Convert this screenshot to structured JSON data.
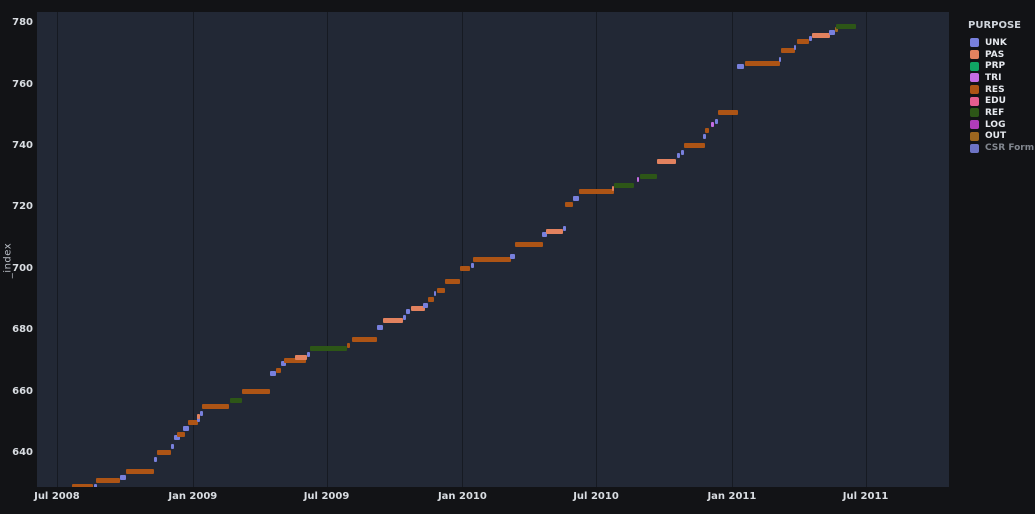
{
  "page": {
    "background": "#121316",
    "plot_background": "#222835"
  },
  "y_axis_title": "_index",
  "legend": {
    "title": "PURPOSE",
    "items": [
      {
        "label": "UNK",
        "color": "#7880dd",
        "dimmed": false
      },
      {
        "label": "PAS",
        "color": "#e2825f",
        "dimmed": false
      },
      {
        "label": "PRP",
        "color": "#10a564",
        "dimmed": false
      },
      {
        "label": "TRI",
        "color": "#c46ce4",
        "dimmed": false
      },
      {
        "label": "RES",
        "color": "#ad5415",
        "dimmed": false
      },
      {
        "label": "EDU",
        "color": "#e55d8f",
        "dimmed": false
      },
      {
        "label": "REF",
        "color": "#2d5617",
        "dimmed": false
      },
      {
        "label": "LOG",
        "color": "#b13cba",
        "dimmed": false
      },
      {
        "label": "OUT",
        "color": "#9c661f",
        "dimmed": false
      },
      {
        "label": "CSR Form",
        "color": "#6d73c4",
        "dimmed": true
      }
    ]
  },
  "chart_data": {
    "type": "gantt",
    "title": "",
    "xlabel": "",
    "ylabel": "_index",
    "legend_title": "PURPOSE",
    "legend_position": "top-right",
    "grid": "vertical-only",
    "x_domain": [
      "2008-06-04",
      "2011-10-22"
    ],
    "y_domain": [
      628.9,
      783.6
    ],
    "x_ticks": [
      {
        "date": "2008-07-01",
        "label": "Jul 2008"
      },
      {
        "date": "2009-01-01",
        "label": "Jan 2009"
      },
      {
        "date": "2009-07-01",
        "label": "Jul 2009"
      },
      {
        "date": "2010-01-01",
        "label": "Jan 2010"
      },
      {
        "date": "2010-07-01",
        "label": "Jul 2010"
      },
      {
        "date": "2011-01-01",
        "label": "Jan 2011"
      },
      {
        "date": "2011-07-01",
        "label": "Jul 2011"
      }
    ],
    "y_ticks": [
      640,
      660,
      680,
      700,
      720,
      740,
      760,
      780
    ],
    "colors": {
      "UNK": "#7880dd",
      "PAS": "#e2825f",
      "PRP": "#10a564",
      "TRI": "#c46ce4",
      "RES": "#ad5415",
      "EDU": "#e55d8f",
      "REF": "#2d5617",
      "LOG": "#b13cba",
      "OUT": "#9c661f",
      "CSR Form": "#6d73c4"
    },
    "segments": [
      {
        "purpose": "RES",
        "index": 629,
        "start": "2008-07-22",
        "end": "2008-08-19"
      },
      {
        "purpose": "UNK",
        "index": 629,
        "start": "2008-08-20",
        "end": "2008-08-24"
      },
      {
        "purpose": "RES",
        "index": 631,
        "start": "2008-08-23",
        "end": "2008-09-24"
      },
      {
        "purpose": "UNK",
        "index": 632,
        "start": "2008-09-24",
        "end": "2008-10-03"
      },
      {
        "purpose": "RES",
        "index": 634,
        "start": "2008-10-03",
        "end": "2008-11-10"
      },
      {
        "purpose": "UNK",
        "index": 638,
        "start": "2008-11-10",
        "end": "2008-11-14"
      },
      {
        "purpose": "RES",
        "index": 640,
        "start": "2008-11-13",
        "end": "2008-12-03"
      },
      {
        "purpose": "UNK",
        "index": 642,
        "start": "2008-12-02",
        "end": "2008-12-06"
      },
      {
        "purpose": "UNK",
        "index": 645,
        "start": "2008-12-07",
        "end": "2008-12-14"
      },
      {
        "purpose": "RES",
        "index": 646,
        "start": "2008-12-11",
        "end": "2008-12-22"
      },
      {
        "purpose": "UNK",
        "index": 648,
        "start": "2008-12-19",
        "end": "2008-12-27"
      },
      {
        "purpose": "RES",
        "index": 650,
        "start": "2008-12-25",
        "end": "2009-01-08"
      },
      {
        "purpose": "UNK",
        "index": 651,
        "start": "2009-01-06",
        "end": "2009-01-10"
      },
      {
        "purpose": "PAS",
        "index": 652,
        "start": "2009-01-07",
        "end": "2009-01-11"
      },
      {
        "purpose": "UNK",
        "index": 653,
        "start": "2009-01-10",
        "end": "2009-01-15"
      },
      {
        "purpose": "RES",
        "index": 655,
        "start": "2009-01-13",
        "end": "2009-02-19"
      },
      {
        "purpose": "REF",
        "index": 657,
        "start": "2009-02-20",
        "end": "2009-03-09"
      },
      {
        "purpose": "RES",
        "index": 660,
        "start": "2009-03-09",
        "end": "2009-04-16"
      },
      {
        "purpose": "UNK",
        "index": 666,
        "start": "2009-04-16",
        "end": "2009-04-23"
      },
      {
        "purpose": "RES",
        "index": 667,
        "start": "2009-04-23",
        "end": "2009-05-01"
      },
      {
        "purpose": "UNK",
        "index": 669,
        "start": "2009-05-01",
        "end": "2009-05-07"
      },
      {
        "purpose": "RES",
        "index": 670,
        "start": "2009-05-05",
        "end": "2009-06-03"
      },
      {
        "purpose": "PAS",
        "index": 671,
        "start": "2009-05-19",
        "end": "2009-06-05"
      },
      {
        "purpose": "UNK",
        "index": 672,
        "start": "2009-06-04",
        "end": "2009-06-08"
      },
      {
        "purpose": "REF",
        "index": 674,
        "start": "2009-06-09",
        "end": "2009-07-29"
      },
      {
        "purpose": "RES",
        "index": 675,
        "start": "2009-07-29",
        "end": "2009-08-02"
      },
      {
        "purpose": "RES",
        "index": 677,
        "start": "2009-08-04",
        "end": "2009-09-08"
      },
      {
        "purpose": "UNK",
        "index": 681,
        "start": "2009-09-08",
        "end": "2009-09-16"
      },
      {
        "purpose": "PAS",
        "index": 683,
        "start": "2009-09-16",
        "end": "2009-10-13"
      },
      {
        "purpose": "UNK",
        "index": 684,
        "start": "2009-10-13",
        "end": "2009-10-17"
      },
      {
        "purpose": "UNK",
        "index": 686,
        "start": "2009-10-17",
        "end": "2009-10-22"
      },
      {
        "purpose": "PAS",
        "index": 687,
        "start": "2009-10-24",
        "end": "2009-11-11"
      },
      {
        "purpose": "UNK",
        "index": 688,
        "start": "2009-11-09",
        "end": "2009-11-15"
      },
      {
        "purpose": "RES",
        "index": 690,
        "start": "2009-11-15",
        "end": "2009-11-24"
      },
      {
        "purpose": "UNK",
        "index": 692,
        "start": "2009-11-24",
        "end": "2009-11-27"
      },
      {
        "purpose": "RES",
        "index": 693,
        "start": "2009-11-27",
        "end": "2009-12-09"
      },
      {
        "purpose": "RES",
        "index": 696,
        "start": "2009-12-09",
        "end": "2009-12-29"
      },
      {
        "purpose": "RES",
        "index": 700,
        "start": "2009-12-29",
        "end": "2010-01-12"
      },
      {
        "purpose": "UNK",
        "index": 701,
        "start": "2010-01-12",
        "end": "2010-01-16"
      },
      {
        "purpose": "RES",
        "index": 703,
        "start": "2010-01-16",
        "end": "2010-03-08"
      },
      {
        "purpose": "UNK",
        "index": 704,
        "start": "2010-03-07",
        "end": "2010-03-13"
      },
      {
        "purpose": "RES",
        "index": 708,
        "start": "2010-03-13",
        "end": "2010-04-20"
      },
      {
        "purpose": "UNK",
        "index": 711,
        "start": "2010-04-19",
        "end": "2010-04-26"
      },
      {
        "purpose": "PAS",
        "index": 712,
        "start": "2010-04-24",
        "end": "2010-05-18"
      },
      {
        "purpose": "UNK",
        "index": 713,
        "start": "2010-05-17",
        "end": "2010-05-21"
      },
      {
        "purpose": "RES",
        "index": 721,
        "start": "2010-05-20",
        "end": "2010-05-31"
      },
      {
        "purpose": "UNK",
        "index": 723,
        "start": "2010-05-31",
        "end": "2010-06-08"
      },
      {
        "purpose": "RES",
        "index": 725,
        "start": "2010-06-08",
        "end": "2010-07-25"
      },
      {
        "purpose": "PAS",
        "index": 726,
        "start": "2010-07-23",
        "end": "2010-07-26"
      },
      {
        "purpose": "REF",
        "index": 727,
        "start": "2010-07-25",
        "end": "2010-08-21"
      },
      {
        "purpose": "TRI",
        "index": 729,
        "start": "2010-08-25",
        "end": "2010-08-28"
      },
      {
        "purpose": "REF",
        "index": 730,
        "start": "2010-08-29",
        "end": "2010-09-21"
      },
      {
        "purpose": "PAS",
        "index": 735,
        "start": "2010-09-21",
        "end": "2010-10-18"
      },
      {
        "purpose": "UNK",
        "index": 737,
        "start": "2010-10-18",
        "end": "2010-10-22"
      },
      {
        "purpose": "UNK",
        "index": 738,
        "start": "2010-10-24",
        "end": "2010-10-28"
      },
      {
        "purpose": "RES",
        "index": 740,
        "start": "2010-10-28",
        "end": "2010-11-25"
      },
      {
        "purpose": "UNK",
        "index": 743,
        "start": "2010-11-23",
        "end": "2010-11-27"
      },
      {
        "purpose": "RES",
        "index": 745,
        "start": "2010-11-26",
        "end": "2010-12-01"
      },
      {
        "purpose": "TRI",
        "index": 747,
        "start": "2010-12-04",
        "end": "2010-12-08"
      },
      {
        "purpose": "UNK",
        "index": 748,
        "start": "2010-12-09",
        "end": "2010-12-13"
      },
      {
        "purpose": "RES",
        "index": 751,
        "start": "2010-12-13",
        "end": "2011-01-09"
      },
      {
        "purpose": "UNK",
        "index": 766,
        "start": "2011-01-08",
        "end": "2011-01-17"
      },
      {
        "purpose": "RES",
        "index": 767,
        "start": "2011-01-19",
        "end": "2011-03-07"
      },
      {
        "purpose": "UNK",
        "index": 768,
        "start": "2011-03-06",
        "end": "2011-03-09"
      },
      {
        "purpose": "RES",
        "index": 771,
        "start": "2011-03-08",
        "end": "2011-03-27"
      },
      {
        "purpose": "UNK",
        "index": 772,
        "start": "2011-03-26",
        "end": "2011-03-29"
      },
      {
        "purpose": "RES",
        "index": 774,
        "start": "2011-03-30",
        "end": "2011-04-16"
      },
      {
        "purpose": "UNK",
        "index": 775,
        "start": "2011-04-16",
        "end": "2011-04-19"
      },
      {
        "purpose": "PAS",
        "index": 776,
        "start": "2011-04-19",
        "end": "2011-05-14"
      },
      {
        "purpose": "UNK",
        "index": 777,
        "start": "2011-05-13",
        "end": "2011-05-21"
      },
      {
        "purpose": "OUT",
        "index": 778,
        "start": "2011-05-20",
        "end": "2011-05-24"
      },
      {
        "purpose": "REF",
        "index": 779,
        "start": "2011-05-22",
        "end": "2011-06-18"
      }
    ]
  }
}
